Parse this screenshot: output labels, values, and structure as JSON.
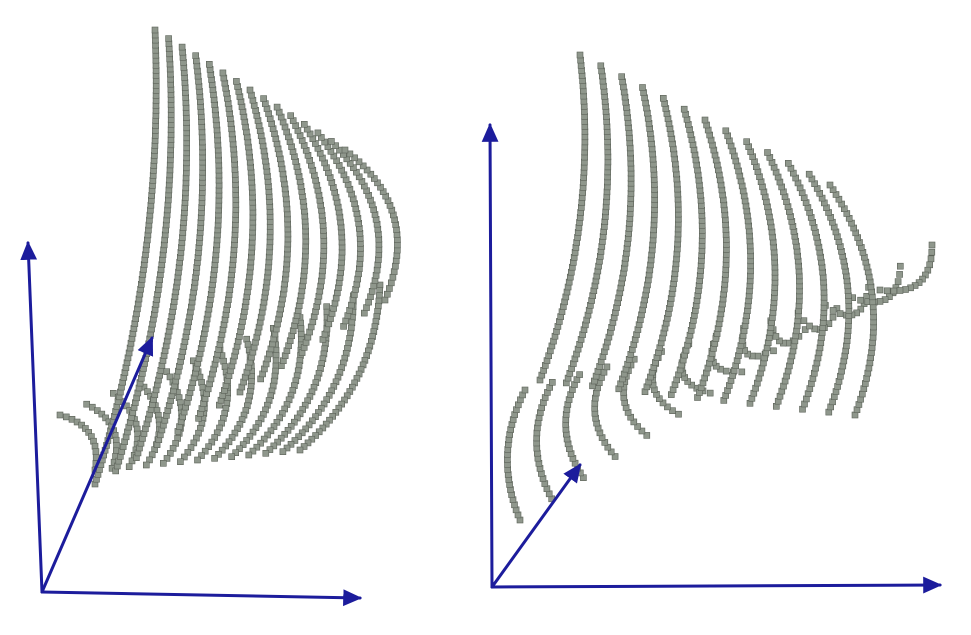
{
  "colors": {
    "background": "#ffffff",
    "axis": "#1c1c9c",
    "voxel": "#8f978c",
    "voxel_edge": "#5b6258"
  },
  "panels": [
    {
      "name": "left-panel",
      "axes": [
        "x-axis",
        "y-axis",
        "z-axis"
      ],
      "upper_ribbons": 15,
      "lower_ribbons": 13
    },
    {
      "name": "right-panel",
      "axes": [
        "x-axis",
        "y-axis",
        "z-axis"
      ],
      "upper_ribbons": 13,
      "lower_ribbons": 14
    }
  ]
}
